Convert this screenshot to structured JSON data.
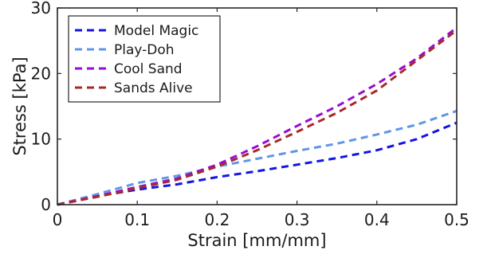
{
  "chart_data": {
    "type": "line",
    "xlabel": "Strain [mm/mm]",
    "ylabel": "Stress [kPa]",
    "xlim": [
      0,
      0.5
    ],
    "ylim": [
      0,
      30
    ],
    "xticks": [
      0,
      0.1,
      0.2,
      0.3,
      0.4,
      0.5
    ],
    "xtick_labels": [
      "0",
      "0.1",
      "0.2",
      "0.3",
      "0.4",
      "0.5"
    ],
    "yticks": [
      0,
      10,
      20,
      30
    ],
    "ytick_labels": [
      "0",
      "10",
      "20",
      "30"
    ],
    "grid": false,
    "legend_position": "top-left",
    "series": [
      {
        "name": "Model Magic",
        "color": "#1414e6",
        "x": [
          0,
          0.05,
          0.1,
          0.15,
          0.2,
          0.25,
          0.3,
          0.35,
          0.4,
          0.45,
          0.5
        ],
        "y": [
          0,
          1.3,
          2.3,
          3.1,
          4.2,
          5.1,
          6.1,
          7.1,
          8.3,
          10.0,
          12.5
        ]
      },
      {
        "name": "Play-Doh",
        "color": "#5f96e6",
        "x": [
          0,
          0.05,
          0.1,
          0.15,
          0.2,
          0.25,
          0.3,
          0.35,
          0.4,
          0.45,
          0.5
        ],
        "y": [
          0,
          1.6,
          3.3,
          4.4,
          5.8,
          7.0,
          8.2,
          9.3,
          10.7,
          12.2,
          14.3
        ]
      },
      {
        "name": "Cool Sand",
        "color": "#9a0ad6",
        "x": [
          0,
          0.05,
          0.1,
          0.15,
          0.2,
          0.25,
          0.3,
          0.35,
          0.4,
          0.45,
          0.5
        ],
        "y": [
          0,
          1.3,
          2.7,
          4.0,
          6.1,
          8.9,
          12.0,
          15.0,
          18.4,
          22.3,
          27.0
        ]
      },
      {
        "name": "Sands Alive",
        "color": "#a52a2a",
        "x": [
          0,
          0.05,
          0.1,
          0.15,
          0.2,
          0.25,
          0.3,
          0.35,
          0.4,
          0.45,
          0.5
        ],
        "y": [
          0,
          1.2,
          2.5,
          3.8,
          5.8,
          8.3,
          11.1,
          14.0,
          17.4,
          22.0,
          26.6
        ]
      }
    ]
  }
}
